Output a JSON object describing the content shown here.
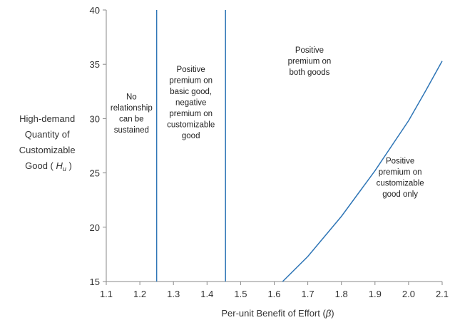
{
  "chart_data": {
    "type": "line",
    "xlabel": "Per-unit Benefit of Effort (",
    "xlabel_symbol": "β",
    "xlabel_close": ")",
    "ylabel_lines": [
      "High-demand",
      "Quantity of",
      "Customizable"
    ],
    "ylabel_last": "Good ( ",
    "ylabel_symbol": "H",
    "ylabel_subscript": "u",
    "ylabel_close": " )",
    "xlim": [
      1.1,
      2.1
    ],
    "ylim": [
      15,
      40
    ],
    "x_ticks": [
      1.1,
      1.2,
      1.3,
      1.4,
      1.5,
      1.6,
      1.7,
      1.8,
      1.9,
      2.0,
      2.1
    ],
    "x_tick_labels": [
      "1.1",
      "1.2",
      "1.3",
      "1.4",
      "1.5",
      "1.6",
      "1.7",
      "1.8",
      "1.9",
      "2.0",
      "2.1"
    ],
    "y_ticks": [
      15,
      20,
      25,
      30,
      35,
      40
    ],
    "y_tick_labels": [
      "15",
      "20",
      "25",
      "30",
      "35",
      "40"
    ],
    "grid": false,
    "series_color": "#2e75b6",
    "vertical_lines": [
      1.25,
      1.455
    ],
    "series": [
      {
        "x": [
          1.625,
          1.7,
          1.8,
          1.9,
          2.0,
          2.05,
          2.1
        ],
        "y": [
          15.0,
          17.3,
          21.0,
          25.2,
          29.8,
          32.5,
          35.3
        ]
      }
    ],
    "region_labels": [
      {
        "lines": [
          "No",
          "relationship",
          "can be",
          "sustained"
        ],
        "x": 1.175,
        "y": 30.5
      },
      {
        "lines": [
          "Positive",
          "premium on",
          "basic good,",
          "negative",
          "premium on",
          "customizable",
          "good"
        ],
        "x": 1.352,
        "y": 31.5
      },
      {
        "lines": [
          "Positive",
          "premium on",
          "both goods"
        ],
        "x": 1.705,
        "y": 35.3
      },
      {
        "lines": [
          "Positive",
          "premium on",
          "customizable",
          "good only"
        ],
        "x": 1.975,
        "y": 24.6
      }
    ]
  }
}
